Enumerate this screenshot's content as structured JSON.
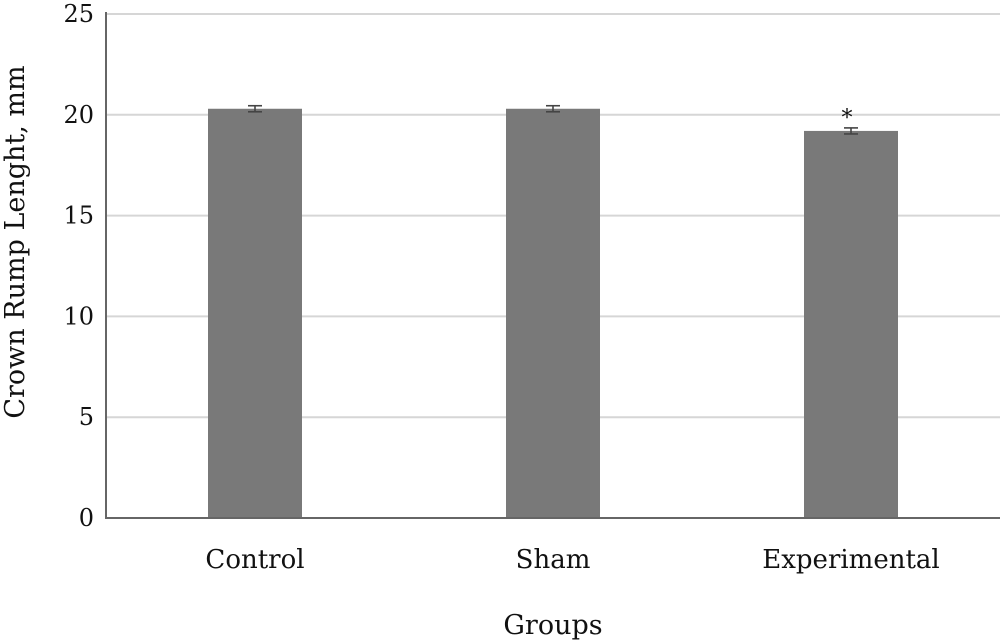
{
  "chart_data": {
    "type": "bar",
    "categories": [
      "Control",
      "Sham",
      "Experimental"
    ],
    "values": [
      20.3,
      20.3,
      19.2
    ],
    "error": [
      0.15,
      0.15,
      0.15
    ],
    "annotations": [
      "",
      "",
      "*"
    ],
    "xlabel": "Groups",
    "ylabel": "Crown Rump Lenght, mm",
    "ylim": [
      0,
      25
    ],
    "yticks": [
      "0",
      "5",
      "10",
      "15",
      "20",
      "25"
    ],
    "grid": true,
    "bar_color": "#797979",
    "grid_color": "#d6d6d6",
    "axis_color": "#666666"
  }
}
